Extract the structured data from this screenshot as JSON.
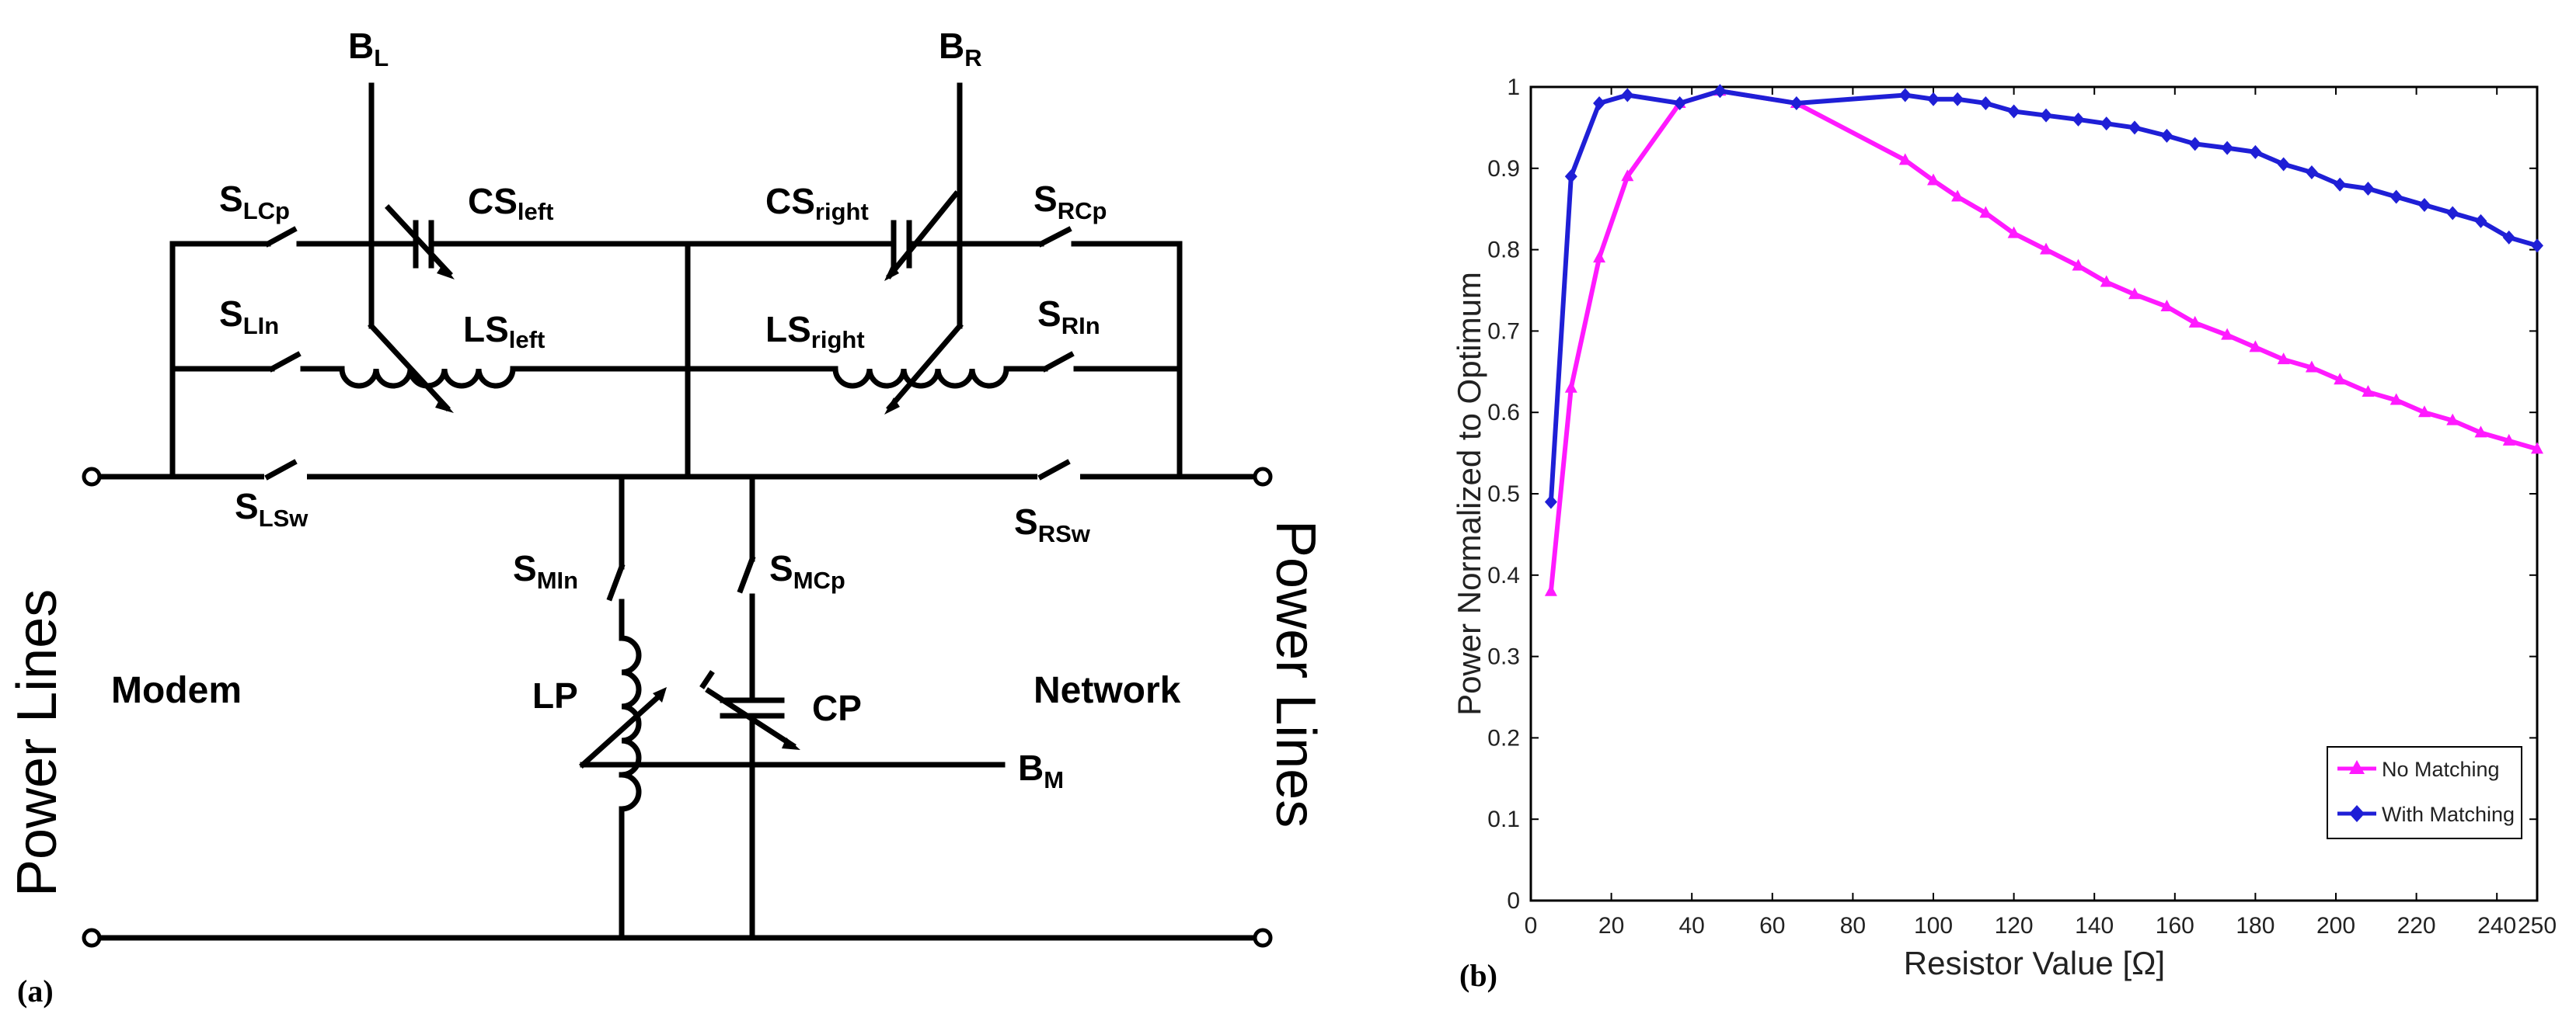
{
  "panel_a": {
    "tag": "(a)",
    "labels": {
      "bl": {
        "main": "B",
        "sub": "L"
      },
      "br": {
        "main": "B",
        "sub": "R"
      },
      "bm": {
        "main": "B",
        "sub": "M"
      },
      "slcp": {
        "main": "S",
        "sub": "LCp"
      },
      "sln": {
        "main": "S",
        "sub": "LIn"
      },
      "slsw": {
        "main": "S",
        "sub": "LSw"
      },
      "srcp": {
        "main": "S",
        "sub": "RCp"
      },
      "srn": {
        "main": "S",
        "sub": "RIn"
      },
      "srsw": {
        "main": "S",
        "sub": "RSw"
      },
      "smin": {
        "main": "S",
        "sub": "MIn"
      },
      "smcp": {
        "main": "S",
        "sub": "MCp"
      },
      "csleft": {
        "main": "CS",
        "sub": "left"
      },
      "csright": {
        "main": "CS",
        "sub": "right"
      },
      "lsleft": {
        "main": "LS",
        "sub": "left"
      },
      "lsright": {
        "main": "LS",
        "sub": "right"
      },
      "lp": "LP",
      "cp": "CP",
      "modem": "Modem",
      "network": "Network",
      "power_lines_left": "Power Lines",
      "power_lines_right": "Power Lines"
    }
  },
  "panel_b": {
    "tag": "(b)",
    "chart_data": {
      "type": "line",
      "title": "",
      "xlabel": "Resistor Value [Ω]",
      "ylabel": "Power Normalized to Optimum",
      "xlim": [
        0,
        250
      ],
      "ylim": [
        0,
        1
      ],
      "xticks": [
        "0",
        "20",
        "40",
        "60",
        "80",
        "100",
        "120",
        "140",
        "160",
        "180",
        "200",
        "220",
        "240",
        "250"
      ],
      "xtick_values": [
        0,
        20,
        40,
        60,
        80,
        100,
        120,
        140,
        160,
        180,
        200,
        220,
        240,
        250
      ],
      "yticks": [
        "0",
        "0.1",
        "0.2",
        "0.3",
        "0.4",
        "0.5",
        "0.6",
        "0.7",
        "0.8",
        "0.9",
        "1"
      ],
      "ytick_values": [
        0,
        0.1,
        0.2,
        0.3,
        0.4,
        0.5,
        0.6,
        0.7,
        0.8,
        0.9,
        1
      ],
      "grid": false,
      "legend_position": "bottom-right",
      "series": [
        {
          "name": "No Matching",
          "color": "#ff1aff",
          "marker": "triangle",
          "x": [
            5,
            10,
            17,
            24,
            37,
            47,
            66,
            93,
            100,
            106,
            113,
            120,
            128,
            136,
            143,
            150,
            158,
            165,
            173,
            180,
            187,
            194,
            201,
            208,
            215,
            222,
            229,
            236,
            243,
            250
          ],
          "y": [
            0.38,
            0.63,
            0.79,
            0.89,
            0.98,
            0.995,
            0.98,
            0.91,
            0.885,
            0.865,
            0.845,
            0.82,
            0.8,
            0.78,
            0.76,
            0.745,
            0.73,
            0.71,
            0.695,
            0.68,
            0.665,
            0.655,
            0.64,
            0.625,
            0.615,
            0.6,
            0.59,
            0.575,
            0.565,
            0.555
          ]
        },
        {
          "name": "With Matching",
          "color": "#1f1fd6",
          "marker": "diamond",
          "x": [
            5,
            10,
            17,
            24,
            37,
            47,
            66,
            93,
            100,
            106,
            113,
            120,
            128,
            136,
            143,
            150,
            158,
            165,
            173,
            180,
            187,
            194,
            201,
            208,
            215,
            222,
            229,
            236,
            243,
            250
          ],
          "y": [
            0.49,
            0.89,
            0.98,
            0.99,
            0.98,
            0.995,
            0.98,
            0.99,
            0.985,
            0.985,
            0.98,
            0.97,
            0.965,
            0.96,
            0.955,
            0.95,
            0.94,
            0.93,
            0.925,
            0.92,
            0.905,
            0.895,
            0.88,
            0.875,
            0.865,
            0.855,
            0.845,
            0.835,
            0.815,
            0.805
          ]
        }
      ]
    }
  }
}
